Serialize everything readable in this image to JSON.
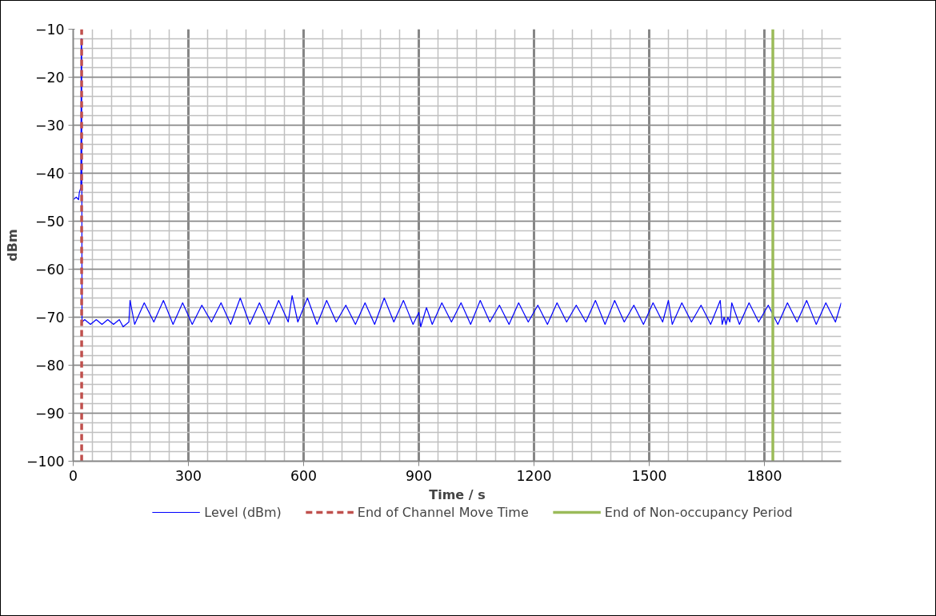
{
  "chart_data": {
    "type": "line",
    "xlabel": "Time / s",
    "ylabel": "dBm",
    "xlim": [
      0,
      2000
    ],
    "xticks": [
      0,
      300,
      600,
      900,
      1200,
      1500,
      1800
    ],
    "ylim": [
      -100,
      -10
    ],
    "yticks": [
      -100,
      -90,
      -80,
      -70,
      -60,
      -50,
      -40,
      -30,
      -20,
      -10
    ],
    "grid": true,
    "legend": "bottom",
    "line_style": "solid",
    "series": [
      {
        "name": "Level (dBm)",
        "color": "#0000ff",
        "x": [
          0,
          8,
          14,
          16,
          20,
          21,
          22,
          23,
          30,
          45,
          60,
          75,
          90,
          105,
          120,
          130,
          145,
          148,
          160,
          185,
          210,
          235,
          260,
          285,
          310,
          335,
          360,
          385,
          410,
          435,
          460,
          485,
          510,
          535,
          560,
          570,
          585,
          610,
          635,
          660,
          685,
          710,
          735,
          760,
          785,
          810,
          835,
          860,
          885,
          900,
          905,
          920,
          935,
          960,
          985,
          1010,
          1035,
          1060,
          1085,
          1110,
          1135,
          1160,
          1185,
          1210,
          1235,
          1260,
          1285,
          1310,
          1335,
          1360,
          1385,
          1410,
          1435,
          1460,
          1485,
          1510,
          1535,
          1550,
          1560,
          1585,
          1610,
          1635,
          1660,
          1685,
          1690,
          1695,
          1700,
          1705,
          1710,
          1715,
          1735,
          1760,
          1785,
          1810,
          1835,
          1860,
          1885,
          1910,
          1935,
          1960,
          1985,
          2000
        ],
        "values": [
          -45.5,
          -45,
          -45.5,
          -44,
          -43,
          -12,
          -12,
          -71,
          -70.5,
          -71.5,
          -70.5,
          -71.5,
          -70.5,
          -71.5,
          -70.5,
          -72,
          -71,
          -66.5,
          -71.5,
          -67,
          -71,
          -66.5,
          -71.5,
          -67,
          -71.5,
          -67.5,
          -71,
          -67,
          -71.5,
          -66,
          -71.5,
          -67,
          -71.5,
          -66.5,
          -71,
          -65.5,
          -71,
          -66,
          -71.5,
          -66.5,
          -71,
          -67.5,
          -71.5,
          -67,
          -71.5,
          -66,
          -71,
          -66.5,
          -71.5,
          -69,
          -72,
          -68,
          -71.5,
          -67,
          -71,
          -67,
          -71.5,
          -66.5,
          -71,
          -67.5,
          -71.5,
          -67,
          -71,
          -67.5,
          -71.5,
          -67,
          -71,
          -67.5,
          -71,
          -66.5,
          -71.5,
          -66.5,
          -71,
          -67.5,
          -71.5,
          -67,
          -71,
          -66.5,
          -71.5,
          -67,
          -71,
          -67.5,
          -71.5,
          -66.5,
          -71.5,
          -70,
          -71.5,
          -70,
          -71,
          -67,
          -71.5,
          -67,
          -71,
          -67.5,
          -71.5,
          -67,
          -71,
          -66.5,
          -71.5,
          -67,
          -71,
          -67
        ]
      }
    ],
    "ref_lines": [
      {
        "axis": "x",
        "value": 22,
        "label": "End of Channel Move Time",
        "color": "#c0504d",
        "line_style": "dashed"
      },
      {
        "axis": "x",
        "value": 1822,
        "label": "End of Non-occupancy Period",
        "color": "#9bbb59",
        "line_style": "solid"
      }
    ]
  }
}
